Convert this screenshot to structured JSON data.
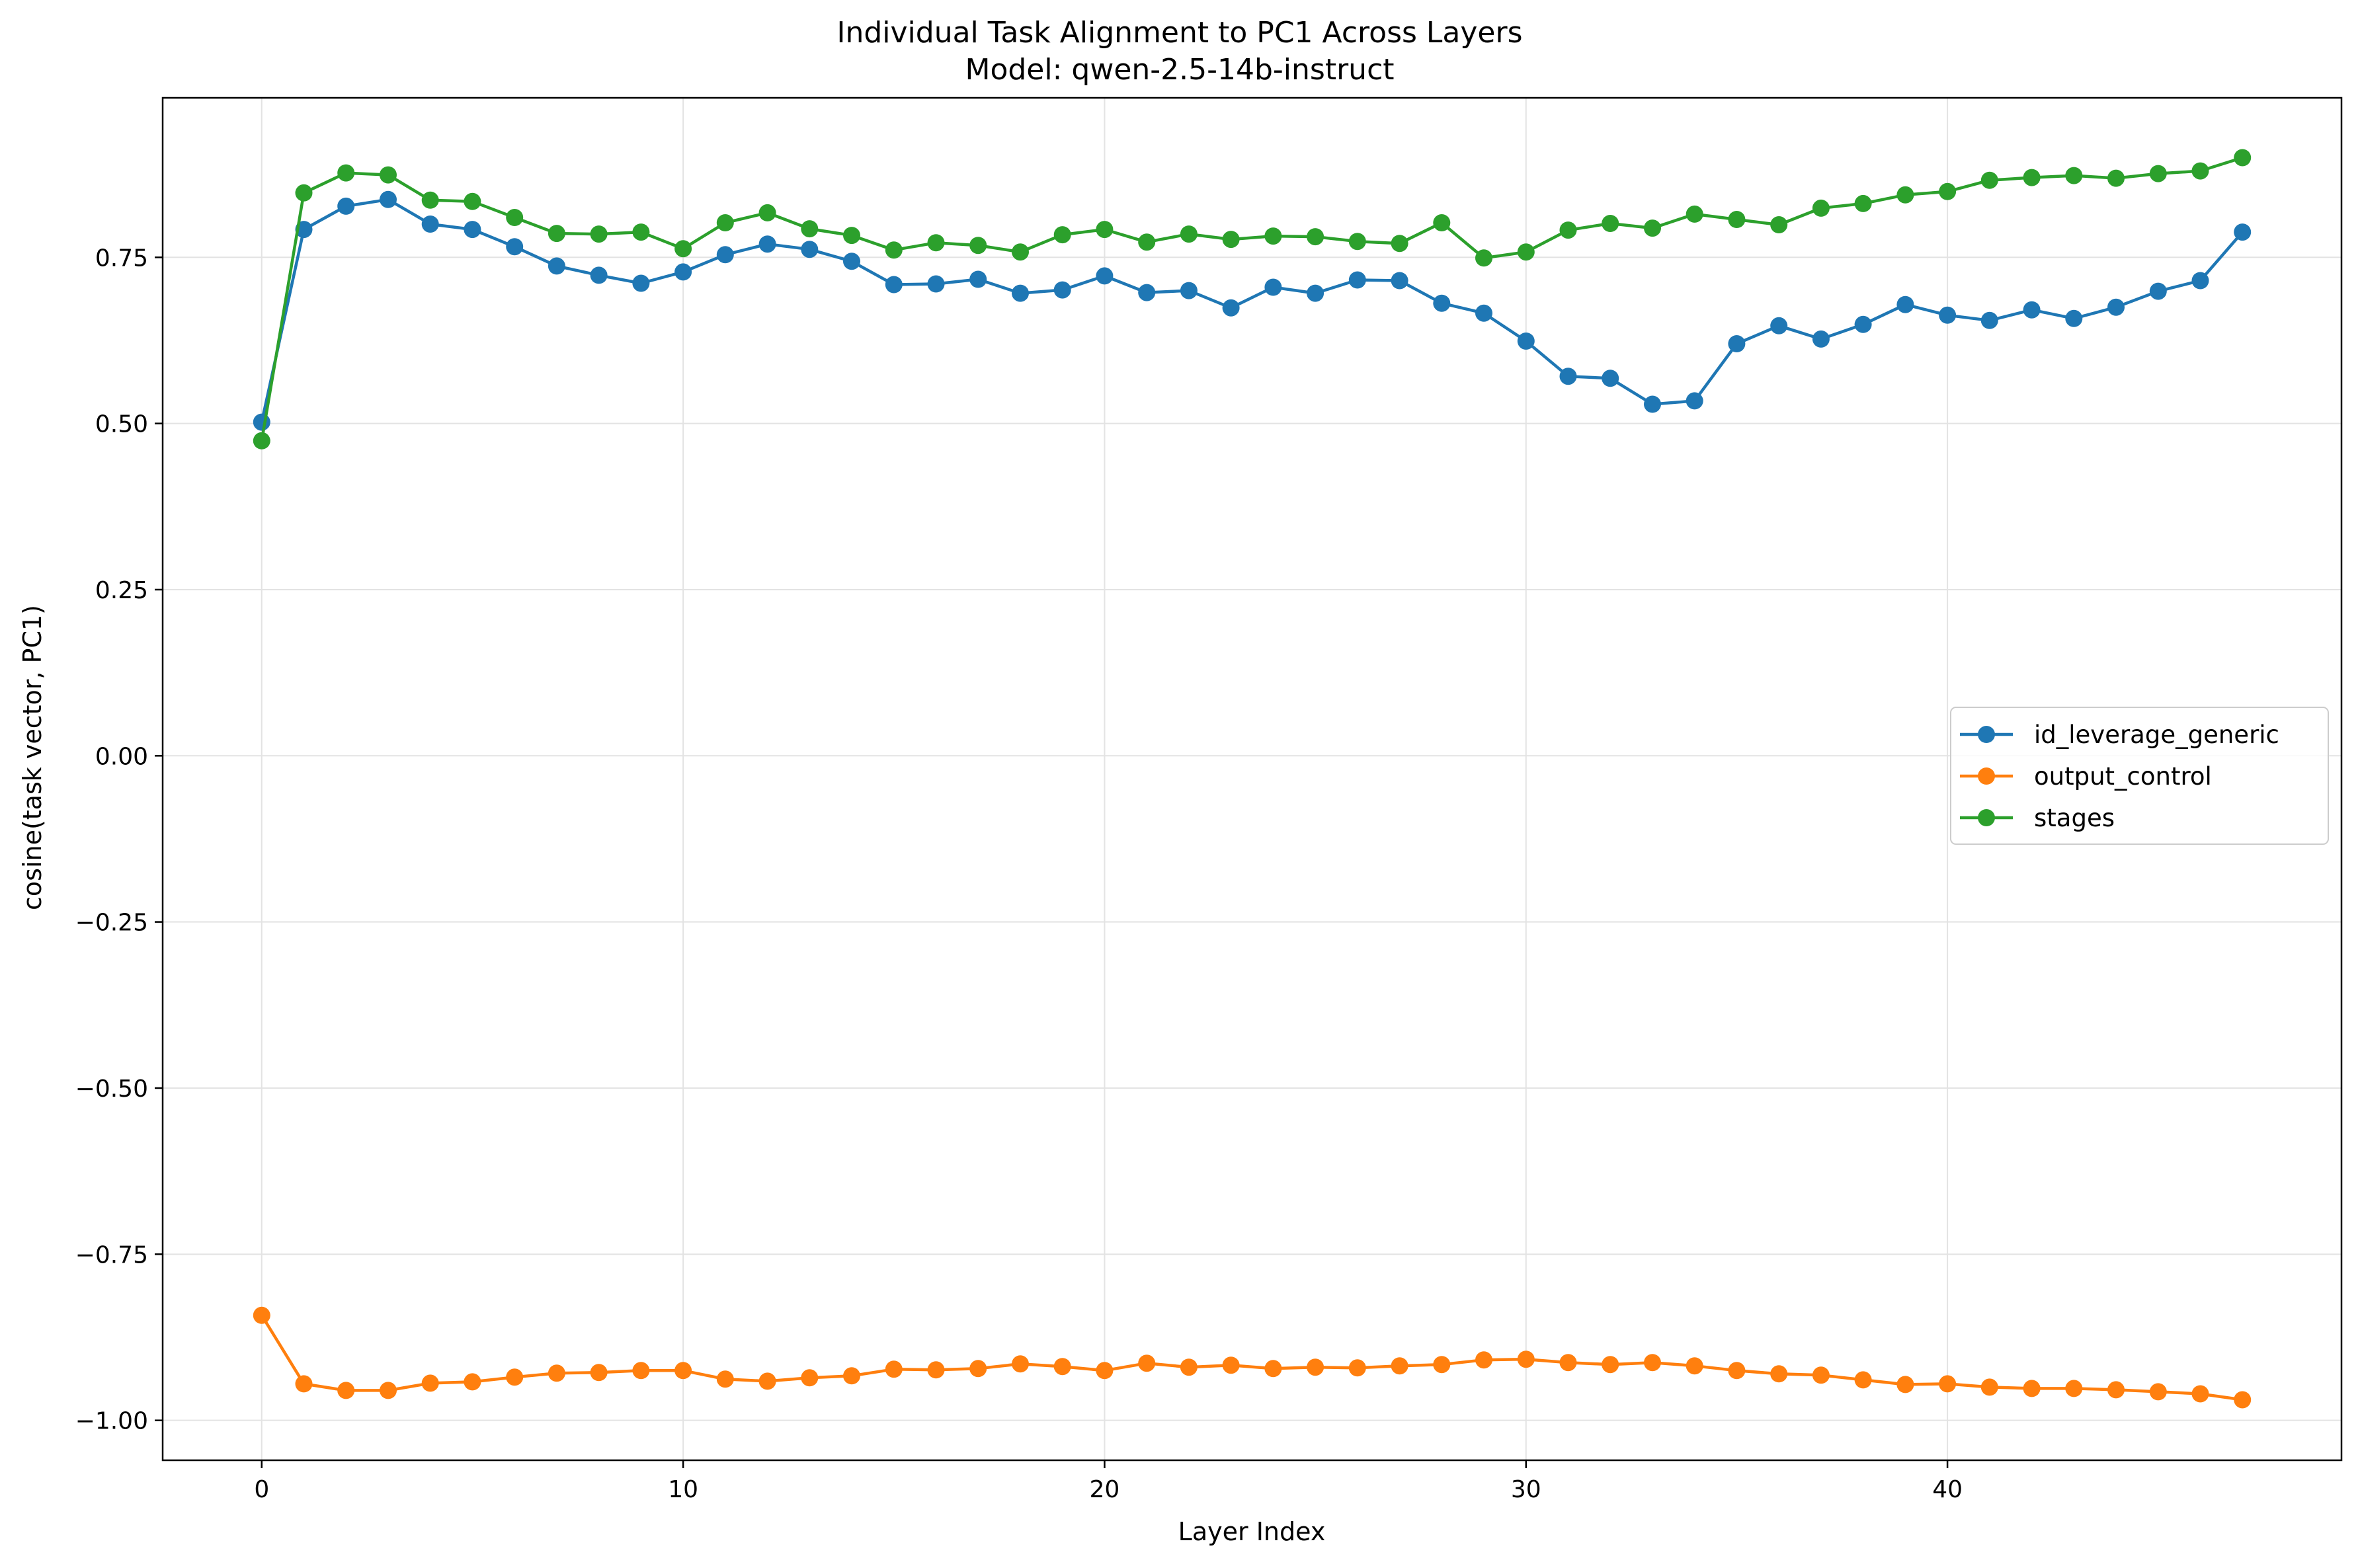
{
  "chart_data": {
    "type": "line",
    "title": "Individual Task Alignment to PC1 Across Layers",
    "subtitle": "Model: qwen-2.5-14b-instruct",
    "xlabel": "Layer Index",
    "ylabel": "cosine(task vector, PC1)",
    "xlim": [
      -2.35,
      49.35
    ],
    "ylim": [
      -1.06,
      0.99
    ],
    "x_ticks": [
      0,
      10,
      20,
      30,
      40
    ],
    "x_tick_labels": [
      "0",
      "10",
      "20",
      "30",
      "40"
    ],
    "y_ticks": [
      0.75,
      0.5,
      0.25,
      0.0,
      -0.25,
      -0.5,
      -0.75,
      -1.0
    ],
    "y_tick_labels": [
      "0.75",
      "0.50",
      "0.25",
      "0.00",
      "−0.25",
      "−0.50",
      "−0.75",
      "−1.00"
    ],
    "grid": true,
    "legend_position": "center-right",
    "x": [
      0,
      1,
      2,
      3,
      4,
      5,
      6,
      7,
      8,
      9,
      10,
      11,
      12,
      13,
      14,
      15,
      16,
      17,
      18,
      19,
      20,
      21,
      22,
      23,
      24,
      25,
      26,
      27,
      28,
      29,
      30,
      31,
      32,
      33,
      34,
      35,
      36,
      37,
      38,
      39,
      40,
      41,
      42,
      43,
      44,
      45,
      46,
      47
    ],
    "series": [
      {
        "name": "id_leverage_generic",
        "color": "#1f77b4",
        "values": [
          0.502,
          0.792,
          0.827,
          0.837,
          0.8,
          0.792,
          0.766,
          0.737,
          0.723,
          0.711,
          0.728,
          0.754,
          0.77,
          0.762,
          0.744,
          0.709,
          0.71,
          0.717,
          0.696,
          0.701,
          0.722,
          0.697,
          0.7,
          0.674,
          0.705,
          0.696,
          0.716,
          0.715,
          0.681,
          0.666,
          0.624,
          0.571,
          0.568,
          0.529,
          0.534,
          0.62,
          0.647,
          0.627,
          0.649,
          0.679,
          0.663,
          0.655,
          0.671,
          0.658,
          0.675,
          0.699,
          0.715,
          0.788
        ]
      },
      {
        "name": "output_control",
        "color": "#ff7f0e",
        "values": [
          -0.842,
          -0.945,
          -0.955,
          -0.955,
          -0.944,
          -0.942,
          -0.935,
          -0.929,
          -0.928,
          -0.925,
          -0.925,
          -0.938,
          -0.941,
          -0.936,
          -0.933,
          -0.923,
          -0.924,
          -0.922,
          -0.915,
          -0.919,
          -0.925,
          -0.914,
          -0.92,
          -0.917,
          -0.922,
          -0.92,
          -0.921,
          -0.918,
          -0.916,
          -0.909,
          -0.908,
          -0.913,
          -0.916,
          -0.913,
          -0.918,
          -0.925,
          -0.93,
          -0.932,
          -0.939,
          -0.946,
          -0.945,
          -0.95,
          -0.952,
          -0.952,
          -0.954,
          -0.957,
          -0.96,
          -0.969
        ]
      },
      {
        "name": "stages",
        "color": "#2ca02c",
        "values": [
          0.474,
          0.847,
          0.877,
          0.874,
          0.836,
          0.834,
          0.81,
          0.786,
          0.785,
          0.788,
          0.763,
          0.802,
          0.817,
          0.793,
          0.783,
          0.761,
          0.772,
          0.768,
          0.758,
          0.784,
          0.792,
          0.773,
          0.785,
          0.777,
          0.782,
          0.781,
          0.774,
          0.771,
          0.802,
          0.749,
          0.758,
          0.791,
          0.801,
          0.794,
          0.815,
          0.807,
          0.799,
          0.824,
          0.831,
          0.844,
          0.849,
          0.866,
          0.87,
          0.873,
          0.869,
          0.876,
          0.88,
          0.9
        ]
      }
    ]
  }
}
